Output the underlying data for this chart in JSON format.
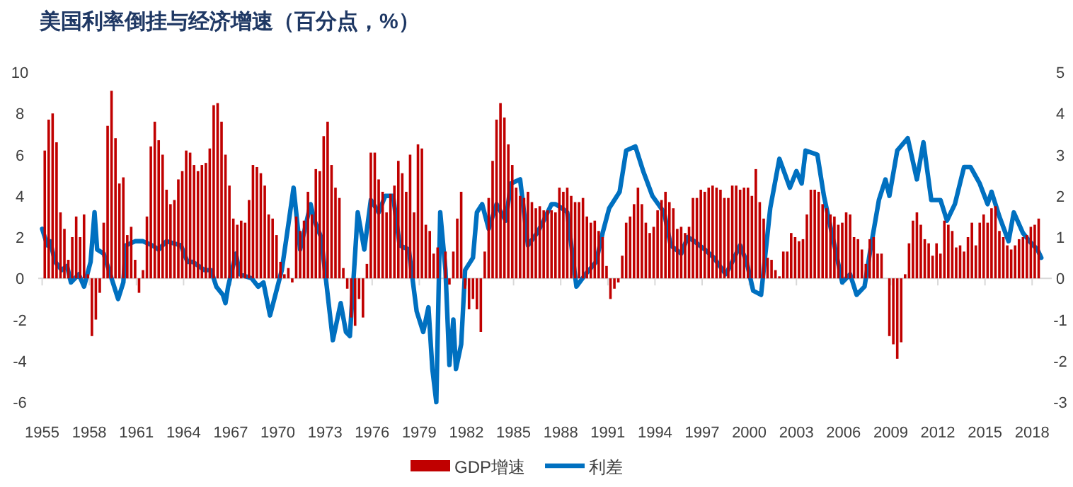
{
  "chart_data": {
    "type": "bar",
    "title": "美国利率倒挂与经济增速（百分点，%）",
    "xlim": [
      "1954-10",
      "2019-04"
    ],
    "xticks": [
      "1955",
      "1958",
      "1961",
      "1964",
      "1967",
      "1970",
      "1973",
      "1976",
      "1979",
      "1982",
      "1985",
      "1988",
      "1991",
      "1994",
      "1997",
      "2000",
      "2003",
      "2006",
      "2009",
      "2012",
      "2015",
      "2018"
    ],
    "ylim": [
      -6,
      10
    ],
    "yticks": [
      -6,
      -4,
      -2,
      0,
      2,
      4,
      6,
      8,
      10
    ],
    "y2lim": [
      -3,
      5
    ],
    "y2ticks": [
      -3,
      -2,
      -1,
      0,
      1,
      2,
      3,
      4,
      5
    ],
    "legend": "bottom",
    "series": [
      {
        "name": "GDP增速",
        "color": "#c00000",
        "x": [
          "1955-03",
          "1955-06",
          "1955-09",
          "1955-12",
          "1956-03",
          "1956-06",
          "1956-09",
          "1956-12",
          "1957-03",
          "1957-06",
          "1957-09",
          "1957-12",
          "1958-03",
          "1958-06",
          "1958-09",
          "1958-12",
          "1959-03",
          "1959-06",
          "1959-09",
          "1959-12",
          "1960-03",
          "1960-06",
          "1960-09",
          "1960-12",
          "1961-03",
          "1961-06",
          "1961-09",
          "1961-12",
          "1962-03",
          "1962-06",
          "1962-09",
          "1962-12",
          "1963-03",
          "1963-06",
          "1963-09",
          "1963-12",
          "1964-03",
          "1964-06",
          "1964-09",
          "1964-12",
          "1965-03",
          "1965-06",
          "1965-09",
          "1965-12",
          "1966-03",
          "1966-06",
          "1966-09",
          "1966-12",
          "1967-03",
          "1967-06",
          "1967-09",
          "1967-12",
          "1968-03",
          "1968-06",
          "1968-09",
          "1968-12",
          "1969-03",
          "1969-06",
          "1969-09",
          "1969-12",
          "1970-03",
          "1970-06",
          "1970-09",
          "1970-12",
          "1971-03",
          "1971-06",
          "1971-09",
          "1971-12",
          "1972-03",
          "1972-06",
          "1972-09",
          "1972-12",
          "1973-03",
          "1973-06",
          "1973-09",
          "1973-12",
          "1974-03",
          "1974-06",
          "1974-09",
          "1974-12",
          "1975-03",
          "1975-06",
          "1975-09",
          "1975-12",
          "1976-03",
          "1976-06",
          "1976-09",
          "1976-12",
          "1977-03",
          "1977-06",
          "1977-09",
          "1977-12",
          "1978-03",
          "1978-06",
          "1978-09",
          "1978-12",
          "1979-03",
          "1979-06",
          "1979-09",
          "1979-12",
          "1980-03",
          "1980-06",
          "1980-09",
          "1980-12",
          "1981-03",
          "1981-06",
          "1981-09",
          "1981-12",
          "1982-03",
          "1982-06",
          "1982-09",
          "1982-12",
          "1983-03",
          "1983-06",
          "1983-09",
          "1983-12",
          "1984-03",
          "1984-06",
          "1984-09",
          "1984-12",
          "1985-03",
          "1985-06",
          "1985-09",
          "1985-12",
          "1986-03",
          "1986-06",
          "1986-09",
          "1986-12",
          "1987-03",
          "1987-06",
          "1987-09",
          "1987-12",
          "1988-03",
          "1988-06",
          "1988-09",
          "1988-12",
          "1989-03",
          "1989-06",
          "1989-09",
          "1989-12",
          "1990-03",
          "1990-06",
          "1990-09",
          "1990-12",
          "1991-03",
          "1991-06",
          "1991-09",
          "1991-12",
          "1992-03",
          "1992-06",
          "1992-09",
          "1992-12",
          "1993-03",
          "1993-06",
          "1993-09",
          "1993-12",
          "1994-03",
          "1994-06",
          "1994-09",
          "1994-12",
          "1995-03",
          "1995-06",
          "1995-09",
          "1995-12",
          "1996-03",
          "1996-06",
          "1996-09",
          "1996-12",
          "1997-03",
          "1997-06",
          "1997-09",
          "1997-12",
          "1998-03",
          "1998-06",
          "1998-09",
          "1998-12",
          "1999-03",
          "1999-06",
          "1999-09",
          "1999-12",
          "2000-03",
          "2000-06",
          "2000-09",
          "2000-12",
          "2001-03",
          "2001-06",
          "2001-09",
          "2001-12",
          "2002-03",
          "2002-06",
          "2002-09",
          "2002-12",
          "2003-03",
          "2003-06",
          "2003-09",
          "2003-12",
          "2004-03",
          "2004-06",
          "2004-09",
          "2004-12",
          "2005-03",
          "2005-06",
          "2005-09",
          "2005-12",
          "2006-03",
          "2006-06",
          "2006-09",
          "2006-12",
          "2007-03",
          "2007-06",
          "2007-09",
          "2007-12",
          "2008-03",
          "2008-06",
          "2008-09",
          "2008-12",
          "2009-03",
          "2009-06",
          "2009-09",
          "2009-12",
          "2010-03",
          "2010-06",
          "2010-09",
          "2010-12",
          "2011-03",
          "2011-06",
          "2011-09",
          "2011-12",
          "2012-03",
          "2012-06",
          "2012-09",
          "2012-12",
          "2013-03",
          "2013-06",
          "2013-09",
          "2013-12",
          "2014-03",
          "2014-06",
          "2014-09",
          "2014-12",
          "2015-03",
          "2015-06",
          "2015-09",
          "2015-12",
          "2016-03",
          "2016-06",
          "2016-09",
          "2016-12",
          "2017-03",
          "2017-06",
          "2017-09",
          "2017-12",
          "2018-03",
          "2018-06"
        ],
        "values": [
          6.2,
          7.7,
          8.0,
          6.6,
          3.2,
          2.4,
          0.9,
          2.0,
          3.0,
          2.0,
          3.1,
          0.2,
          -2.8,
          -2.0,
          -0.7,
          2.7,
          7.4,
          9.1,
          6.8,
          4.6,
          4.9,
          2.1,
          2.5,
          0.9,
          -0.7,
          0.4,
          3.0,
          6.4,
          7.6,
          6.7,
          6.0,
          4.3,
          3.6,
          3.8,
          4.8,
          5.2,
          6.2,
          6.1,
          5.5,
          5.2,
          5.5,
          5.6,
          6.3,
          8.4,
          8.5,
          7.6,
          6.0,
          4.5,
          2.9,
          2.6,
          2.8,
          2.7,
          3.8,
          5.5,
          5.4,
          5.1,
          4.5,
          3.1,
          2.9,
          2.1,
          0.8,
          0.2,
          0.5,
          -0.2,
          3.0,
          2.3,
          2.8,
          4.2,
          3.1,
          5.3,
          5.2,
          6.9,
          7.6,
          5.5,
          4.4,
          3.9,
          0.5,
          -0.5,
          -1.9,
          -2.3,
          -1.0,
          -1.9,
          0.7,
          6.1,
          6.1,
          4.8,
          4.2,
          3.2,
          4.1,
          4.5,
          5.7,
          5.1,
          4.2,
          6.0,
          3.2,
          6.5,
          6.3,
          2.6,
          2.3,
          1.2,
          1.5,
          0.0,
          1.3,
          -0.3,
          1.3,
          2.9,
          4.2,
          -0.5,
          -1.5,
          -1.0,
          -1.5,
          -2.6,
          1.3,
          3.9,
          5.7,
          7.7,
          8.5,
          7.8,
          6.5,
          5.5,
          4.4,
          4.0,
          3.9,
          4.2,
          3.7,
          3.4,
          3.5,
          3.3,
          3.3,
          3.3,
          3.2,
          4.4,
          4.2,
          4.4,
          4.0,
          3.7,
          3.7,
          3.9,
          3.0,
          2.7,
          2.8,
          2.3,
          2.0,
          0.6,
          -1.0,
          -0.5,
          -0.2,
          1.1,
          2.7,
          3.0,
          3.6,
          4.4,
          3.6,
          2.7,
          2.2,
          2.5,
          3.3,
          3.8,
          4.2,
          3.7,
          3.4,
          2.4,
          2.5,
          2.2,
          2.5,
          3.9,
          3.9,
          4.3,
          4.2,
          4.4,
          4.5,
          4.4,
          4.3,
          3.9,
          3.9,
          4.5,
          4.5,
          4.3,
          4.4,
          4.4,
          4.0,
          5.3,
          3.7,
          2.9,
          1.0,
          0.9,
          0.4,
          0.1,
          1.3,
          1.3,
          2.2,
          2.0,
          1.8,
          1.9,
          3.1,
          4.3,
          4.3,
          4.2,
          3.6,
          3.4,
          3.1,
          3.0,
          2.6,
          2.7,
          3.2,
          3.1,
          2.0,
          1.9,
          1.4,
          0.7,
          1.9,
          2.0,
          1.2,
          1.2,
          0.0,
          -2.8,
          -3.2,
          -3.9,
          -3.1,
          0.2,
          1.7,
          2.8,
          3.2,
          2.6,
          1.9,
          1.7,
          1.1,
          1.7,
          1.2,
          2.8,
          2.6,
          2.3,
          1.5,
          1.6,
          1.3,
          2.0,
          2.7,
          1.6,
          2.7,
          3.1,
          2.7,
          3.4,
          3.5,
          2.3,
          2.0,
          1.6,
          1.4,
          1.6,
          1.9,
          2.0,
          2.1,
          2.5,
          2.6,
          2.9
        ]
      },
      {
        "name": "利差",
        "type": "line",
        "axis": "y2",
        "color": "#0070c0",
        "x": [
          "1955-01",
          "1955-05",
          "1955-07",
          "1955-11",
          "1956-04",
          "1956-08",
          "1956-11",
          "1957-05",
          "1957-09",
          "1958-02",
          "1958-05",
          "1958-07",
          "1958-12",
          "1959-06",
          "1959-11",
          "1960-03",
          "1960-05",
          "1960-12",
          "1961-06",
          "1962-01",
          "1962-06",
          "1962-12",
          "1963-11",
          "1964-04",
          "1964-08",
          "1965-05",
          "1965-10",
          "1966-02",
          "1966-07",
          "1966-09",
          "1966-11",
          "1967-05",
          "1967-08",
          "1968-05",
          "1968-10",
          "1969-02",
          "1969-07",
          "1970-04",
          "1970-09",
          "1971-01",
          "1971-06",
          "1972-02",
          "1972-05",
          "1972-10",
          "1973-02",
          "1973-07",
          "1974-01",
          "1974-05",
          "1974-08",
          "1975-02",
          "1975-07",
          "1975-12",
          "1976-06",
          "1976-11",
          "1977-05",
          "1977-10",
          "1978-05",
          "1978-11",
          "1979-04",
          "1979-08",
          "1979-11",
          "1980-02",
          "1980-05",
          "1980-09",
          "1980-12",
          "1981-03",
          "1981-05",
          "1981-09",
          "1981-12",
          "1982-06",
          "1982-09",
          "1983-01",
          "1983-06",
          "1983-12",
          "1984-07",
          "1984-11",
          "1985-06",
          "1985-12",
          "1986-07",
          "1986-12",
          "1987-06",
          "1987-09",
          "1988-02",
          "1988-06",
          "1989-01",
          "1989-08",
          "1990-04",
          "1990-09",
          "1991-02",
          "1991-10",
          "1992-03",
          "1992-10",
          "1993-04",
          "1993-11",
          "1994-08",
          "1995-01",
          "1995-09",
          "1996-02",
          "1996-07",
          "1997-03",
          "1997-10",
          "1998-07",
          "1998-12",
          "1999-06",
          "1999-11",
          "2000-04",
          "2000-10",
          "2001-05",
          "2001-12",
          "2002-08",
          "2003-01",
          "2003-05",
          "2003-08",
          "2004-05",
          "2004-10",
          "2005-06",
          "2005-12",
          "2006-06",
          "2006-11",
          "2007-05",
          "2007-10",
          "2008-04",
          "2008-09",
          "2008-12",
          "2009-06",
          "2010-02",
          "2010-09",
          "2011-02",
          "2011-08",
          "2012-03",
          "2012-08",
          "2013-02",
          "2013-09",
          "2014-02",
          "2014-09",
          "2015-03",
          "2015-06",
          "2015-12",
          "2016-07",
          "2016-11",
          "2017-06",
          "2017-11",
          "2018-05",
          "2018-08"
        ],
        "values": [
          1.2,
          0.8,
          0.9,
          0.4,
          0.2,
          0.3,
          -0.1,
          0.1,
          -0.2,
          0.4,
          1.6,
          0.7,
          0.6,
          0.0,
          -0.5,
          -0.1,
          0.8,
          0.9,
          0.9,
          0.8,
          0.7,
          0.9,
          0.8,
          0.4,
          0.4,
          0.2,
          0.2,
          -0.2,
          -0.4,
          -0.6,
          -0.2,
          0.6,
          0.1,
          0.0,
          -0.2,
          -0.1,
          -0.9,
          0.2,
          1.3,
          2.2,
          0.7,
          1.8,
          1.4,
          1.0,
          -0.1,
          -1.5,
          -0.6,
          -1.3,
          -1.4,
          1.6,
          0.7,
          1.9,
          1.6,
          2.0,
          2.0,
          0.8,
          0.7,
          -0.8,
          -1.3,
          -0.7,
          -2.2,
          -3.0,
          1.6,
          0.2,
          -2.1,
          -1.0,
          -2.2,
          -1.6,
          0.2,
          0.5,
          1.6,
          1.8,
          1.2,
          1.8,
          1.4,
          2.3,
          2.4,
          0.8,
          1.1,
          1.4,
          1.8,
          1.8,
          1.7,
          1.6,
          -0.2,
          0.1,
          0.4,
          1.1,
          1.7,
          2.1,
          3.1,
          3.2,
          2.6,
          2.0,
          1.6,
          0.8,
          0.6,
          1.0,
          0.9,
          0.7,
          0.5,
          0.1,
          0.4,
          0.8,
          0.4,
          -0.3,
          -0.4,
          1.7,
          2.9,
          2.2,
          2.6,
          2.3,
          3.1,
          3.0,
          2.0,
          0.8,
          -0.1,
          0.1,
          -0.4,
          -0.2,
          0.8,
          1.9,
          2.4,
          2.0,
          3.1,
          3.4,
          2.4,
          3.3,
          1.9,
          1.9,
          1.4,
          1.8,
          2.7,
          2.7,
          2.3,
          1.8,
          2.1,
          1.5,
          0.9,
          1.6,
          1.1,
          0.9,
          0.7,
          0.5
        ]
      }
    ]
  }
}
